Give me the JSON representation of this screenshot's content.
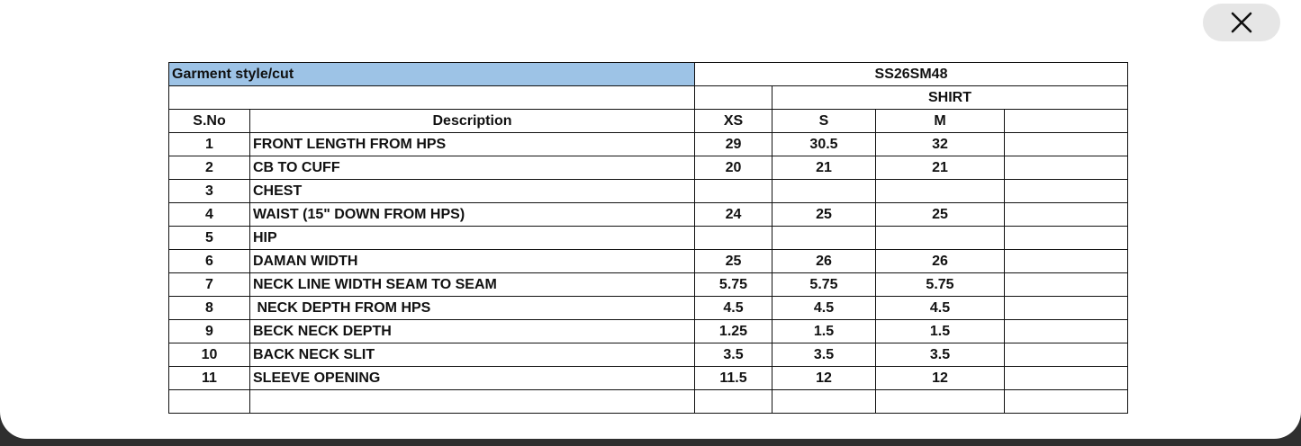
{
  "table": {
    "title_label": "Garment style/cut",
    "style_code": "SS26SM48",
    "category": "SHIRT",
    "headers": [
      "S.No",
      "Description",
      "XS",
      "S",
      "M"
    ],
    "rows": [
      [
        "1",
        "FRONT LENGTH FROM HPS",
        "29",
        "30.5",
        "32"
      ],
      [
        "2",
        "CB TO CUFF",
        "20",
        "21",
        "21"
      ],
      [
        "3",
        "CHEST",
        null,
        null,
        null
      ],
      [
        "4",
        "WAIST (15\" DOWN FROM HPS)",
        "24",
        "25",
        "25"
      ],
      [
        "5",
        "HIP",
        null,
        null,
        null
      ],
      [
        "6",
        "DAMAN WIDTH",
        "25",
        "26",
        "26"
      ],
      [
        "7",
        "NECK LINE WIDTH SEAM TO SEAM",
        "5.75",
        "5.75",
        "5.75"
      ],
      [
        "8",
        " NECK DEPTH FROM HPS",
        "4.5",
        "4.5",
        "4.5"
      ],
      [
        "9",
        "BECK NECK DEPTH",
        "1.25",
        "1.5",
        "1.5"
      ],
      [
        "10",
        "BACK NECK SLIT",
        "3.5",
        "3.5",
        "3.5"
      ],
      [
        "11",
        "SLEEVE OPENING",
        "11.5",
        "12",
        "12"
      ]
    ]
  }
}
